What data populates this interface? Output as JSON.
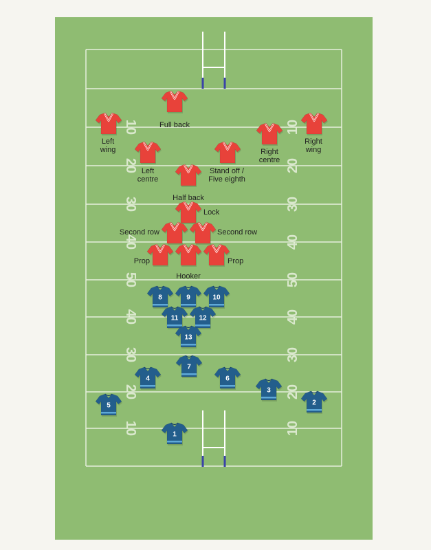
{
  "field": {
    "colors": {
      "grass": "#8fbc72",
      "line": "#e6efdc",
      "post": "#ffffff",
      "pad": "#3a43a8",
      "marking": "#e8f0de"
    },
    "yard_markings": [
      {
        "left": "10",
        "right": "10"
      },
      {
        "left": "20",
        "right": "20"
      },
      {
        "left": "30",
        "right": "30"
      },
      {
        "left": "40",
        "right": "40"
      },
      {
        "left": "50",
        "right": "50"
      },
      {
        "left": "40",
        "right": "40"
      },
      {
        "left": "30",
        "right": "30"
      },
      {
        "left": "20",
        "right": "20"
      },
      {
        "left": "10",
        "right": "10"
      }
    ]
  },
  "red_team": {
    "color": "#e8423a",
    "players": [
      {
        "label": "Full back"
      },
      {
        "label": "Left\nwing"
      },
      {
        "label": "Right\nwing"
      },
      {
        "label": "Right\ncentre"
      },
      {
        "label": "Left\ncentre"
      },
      {
        "label": "Stand off /\nFive eighth"
      },
      {
        "label": "Half back"
      },
      {
        "label": "Lock"
      },
      {
        "label": "Second row"
      },
      {
        "label": "Second row"
      },
      {
        "label": "Prop"
      },
      {
        "label": "Hooker"
      },
      {
        "label": "Prop"
      }
    ]
  },
  "blue_team": {
    "color": "#235e8c",
    "players": [
      {
        "number": "8"
      },
      {
        "number": "9"
      },
      {
        "number": "10"
      },
      {
        "number": "11"
      },
      {
        "number": "12"
      },
      {
        "number": "13"
      },
      {
        "number": "7"
      },
      {
        "number": "4"
      },
      {
        "number": "6"
      },
      {
        "number": "3"
      },
      {
        "number": "5"
      },
      {
        "number": "2"
      },
      {
        "number": "1"
      }
    ]
  }
}
